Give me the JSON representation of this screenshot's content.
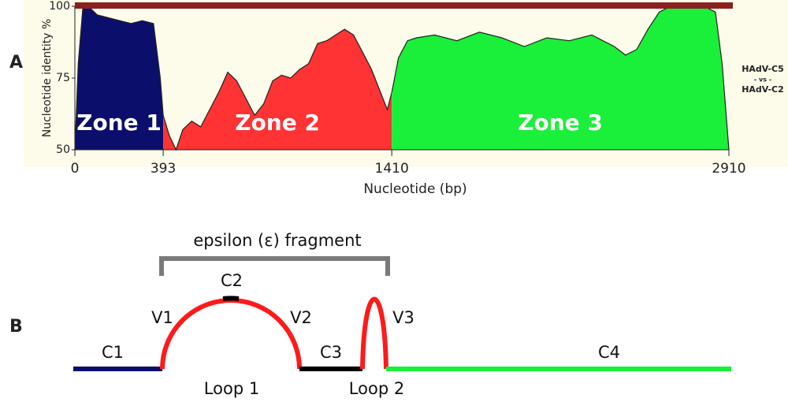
{
  "panel_labels": [
    "A",
    "B"
  ],
  "chart_data": {
    "type": "area",
    "y_label": "Nucleotide identity %",
    "x_label": "Nucleotide (bp)",
    "xlim": [
      0,
      2910
    ],
    "xticks": [
      0,
      393,
      1410,
      2910
    ],
    "ylim": [
      50,
      100
    ],
    "yticks": [
      50,
      75,
      100
    ],
    "series": [
      {
        "name": "Zone 1",
        "color": "#0b0f6b",
        "x": [
          0,
          15,
          35,
          60,
          100,
          150,
          200,
          250,
          300,
          350,
          380,
          393
        ],
        "values": [
          50,
          80,
          99,
          100,
          97,
          96,
          95,
          94,
          95,
          94,
          75,
          62
        ]
      },
      {
        "name": "Zone 2",
        "color": "#ff3333",
        "x": [
          393,
          420,
          450,
          480,
          520,
          560,
          600,
          640,
          680,
          720,
          760,
          800,
          840,
          880,
          920,
          960,
          1000,
          1040,
          1080,
          1120,
          1160,
          1200,
          1240,
          1280,
          1320,
          1360,
          1390,
          1410
        ],
        "values": [
          62,
          55,
          50,
          57,
          60,
          58,
          64,
          70,
          77,
          74,
          68,
          62,
          66,
          74,
          76,
          75,
          78,
          80,
          87,
          88,
          90,
          92,
          90,
          84,
          78,
          70,
          64,
          70
        ]
      },
      {
        "name": "Zone 3",
        "color": "#1aef3a",
        "x": [
          1410,
          1440,
          1480,
          1520,
          1600,
          1700,
          1800,
          1900,
          2000,
          2100,
          2200,
          2300,
          2400,
          2450,
          2500,
          2550,
          2600,
          2650,
          2700,
          2800,
          2850,
          2880,
          2910
        ],
        "values": [
          70,
          82,
          88,
          89,
          90,
          88,
          91,
          89,
          86,
          89,
          88,
          90,
          86,
          83,
          85,
          92,
          98,
          100,
          100,
          100,
          98,
          80,
          50
        ]
      }
    ],
    "annotations": [
      "HAdV-C5",
      "- vs -",
      "HAdV-C2"
    ]
  },
  "diagram": {
    "bracket_label": "epsilon (ε) fragment",
    "segments": [
      "C1",
      "V1",
      "C2",
      "V2",
      "C3",
      "V3",
      "C4"
    ],
    "loops": [
      "Loop 1",
      "Loop 2"
    ]
  }
}
